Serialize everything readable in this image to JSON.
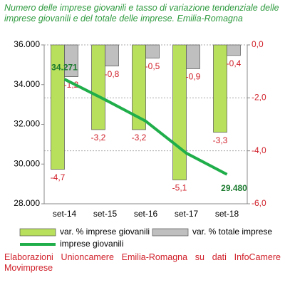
{
  "chart_data": {
    "type": "bar",
    "title": "Numero delle imprese giovanili e tasso di variazione tendenziale delle imprese giovanili e del totale delle imprese. Emilia-Romagna",
    "categories": [
      "set-14",
      "set-15",
      "set-16",
      "set-17",
      "set-18"
    ],
    "series": [
      {
        "name": "var. % imprese giovanili",
        "type": "bar",
        "axis": "y2",
        "color": "#b8e05c",
        "values": [
          -4.7,
          -3.2,
          -3.2,
          -5.1,
          -3.3
        ],
        "value_labels": [
          "-4,7",
          "-3,2",
          "-3,2",
          "-5,1",
          "-3,3"
        ]
      },
      {
        "name": "var. % totale imprese",
        "type": "bar",
        "axis": "y2",
        "color": "#bfbfbf",
        "values": [
          -1.2,
          -0.8,
          -0.5,
          -0.9,
          -0.4
        ],
        "value_labels": [
          "-1,2",
          "-0,8",
          "-0,5",
          "-0,9",
          "-0,4"
        ]
      },
      {
        "name": "imprese giovanili",
        "type": "line",
        "axis": "y",
        "color": "#1fae4a",
        "values": [
          34271,
          33240,
          32160,
          30550,
          29480
        ],
        "value_labels": [
          "34.271",
          null,
          null,
          null,
          "29.480"
        ]
      }
    ],
    "ylim": [
      28000,
      36000
    ],
    "yticks": [
      {
        "value": 28000,
        "label": "28.000"
      },
      {
        "value": 30000,
        "label": "30.000"
      },
      {
        "value": 32000,
        "label": "32.000"
      },
      {
        "value": 34000,
        "label": "34.000"
      },
      {
        "value": 36000,
        "label": "36.000"
      }
    ],
    "y2lim": [
      -6,
      0
    ],
    "y2ticks": [
      {
        "value": 0,
        "label": "0,0"
      },
      {
        "value": -2,
        "label": "-2,0"
      },
      {
        "value": -4,
        "label": "-4,0"
      },
      {
        "value": -6,
        "label": "-6,0"
      }
    ],
    "grid": true,
    "source": "Elaborazioni Unioncamere Emilia-Romagna su dati InfoCamere Movimprese"
  }
}
